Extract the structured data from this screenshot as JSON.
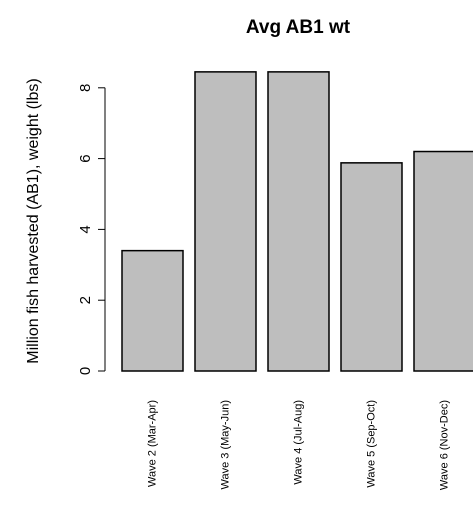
{
  "chart_data": {
    "type": "bar",
    "title": "Avg AB1 wt",
    "xlabel": "",
    "ylabel": "Million fish harvested (AB1), weight (lbs)",
    "categories": [
      "Wave 2 (Mar-Apr)",
      "Wave 3 (May-Jun)",
      "Wave 4 (Jul-Aug)",
      "Wave 5 (Sep-Oct)",
      "Wave 6 (Nov-Dec)"
    ],
    "values": [
      3.4,
      8.45,
      8.45,
      5.88,
      6.2
    ],
    "yticks": [
      0,
      2,
      4,
      6,
      8
    ],
    "ylim": [
      0,
      8.8
    ],
    "bar_fill": "#bebebe",
    "bar_stroke": "#000000",
    "grid": false
  }
}
